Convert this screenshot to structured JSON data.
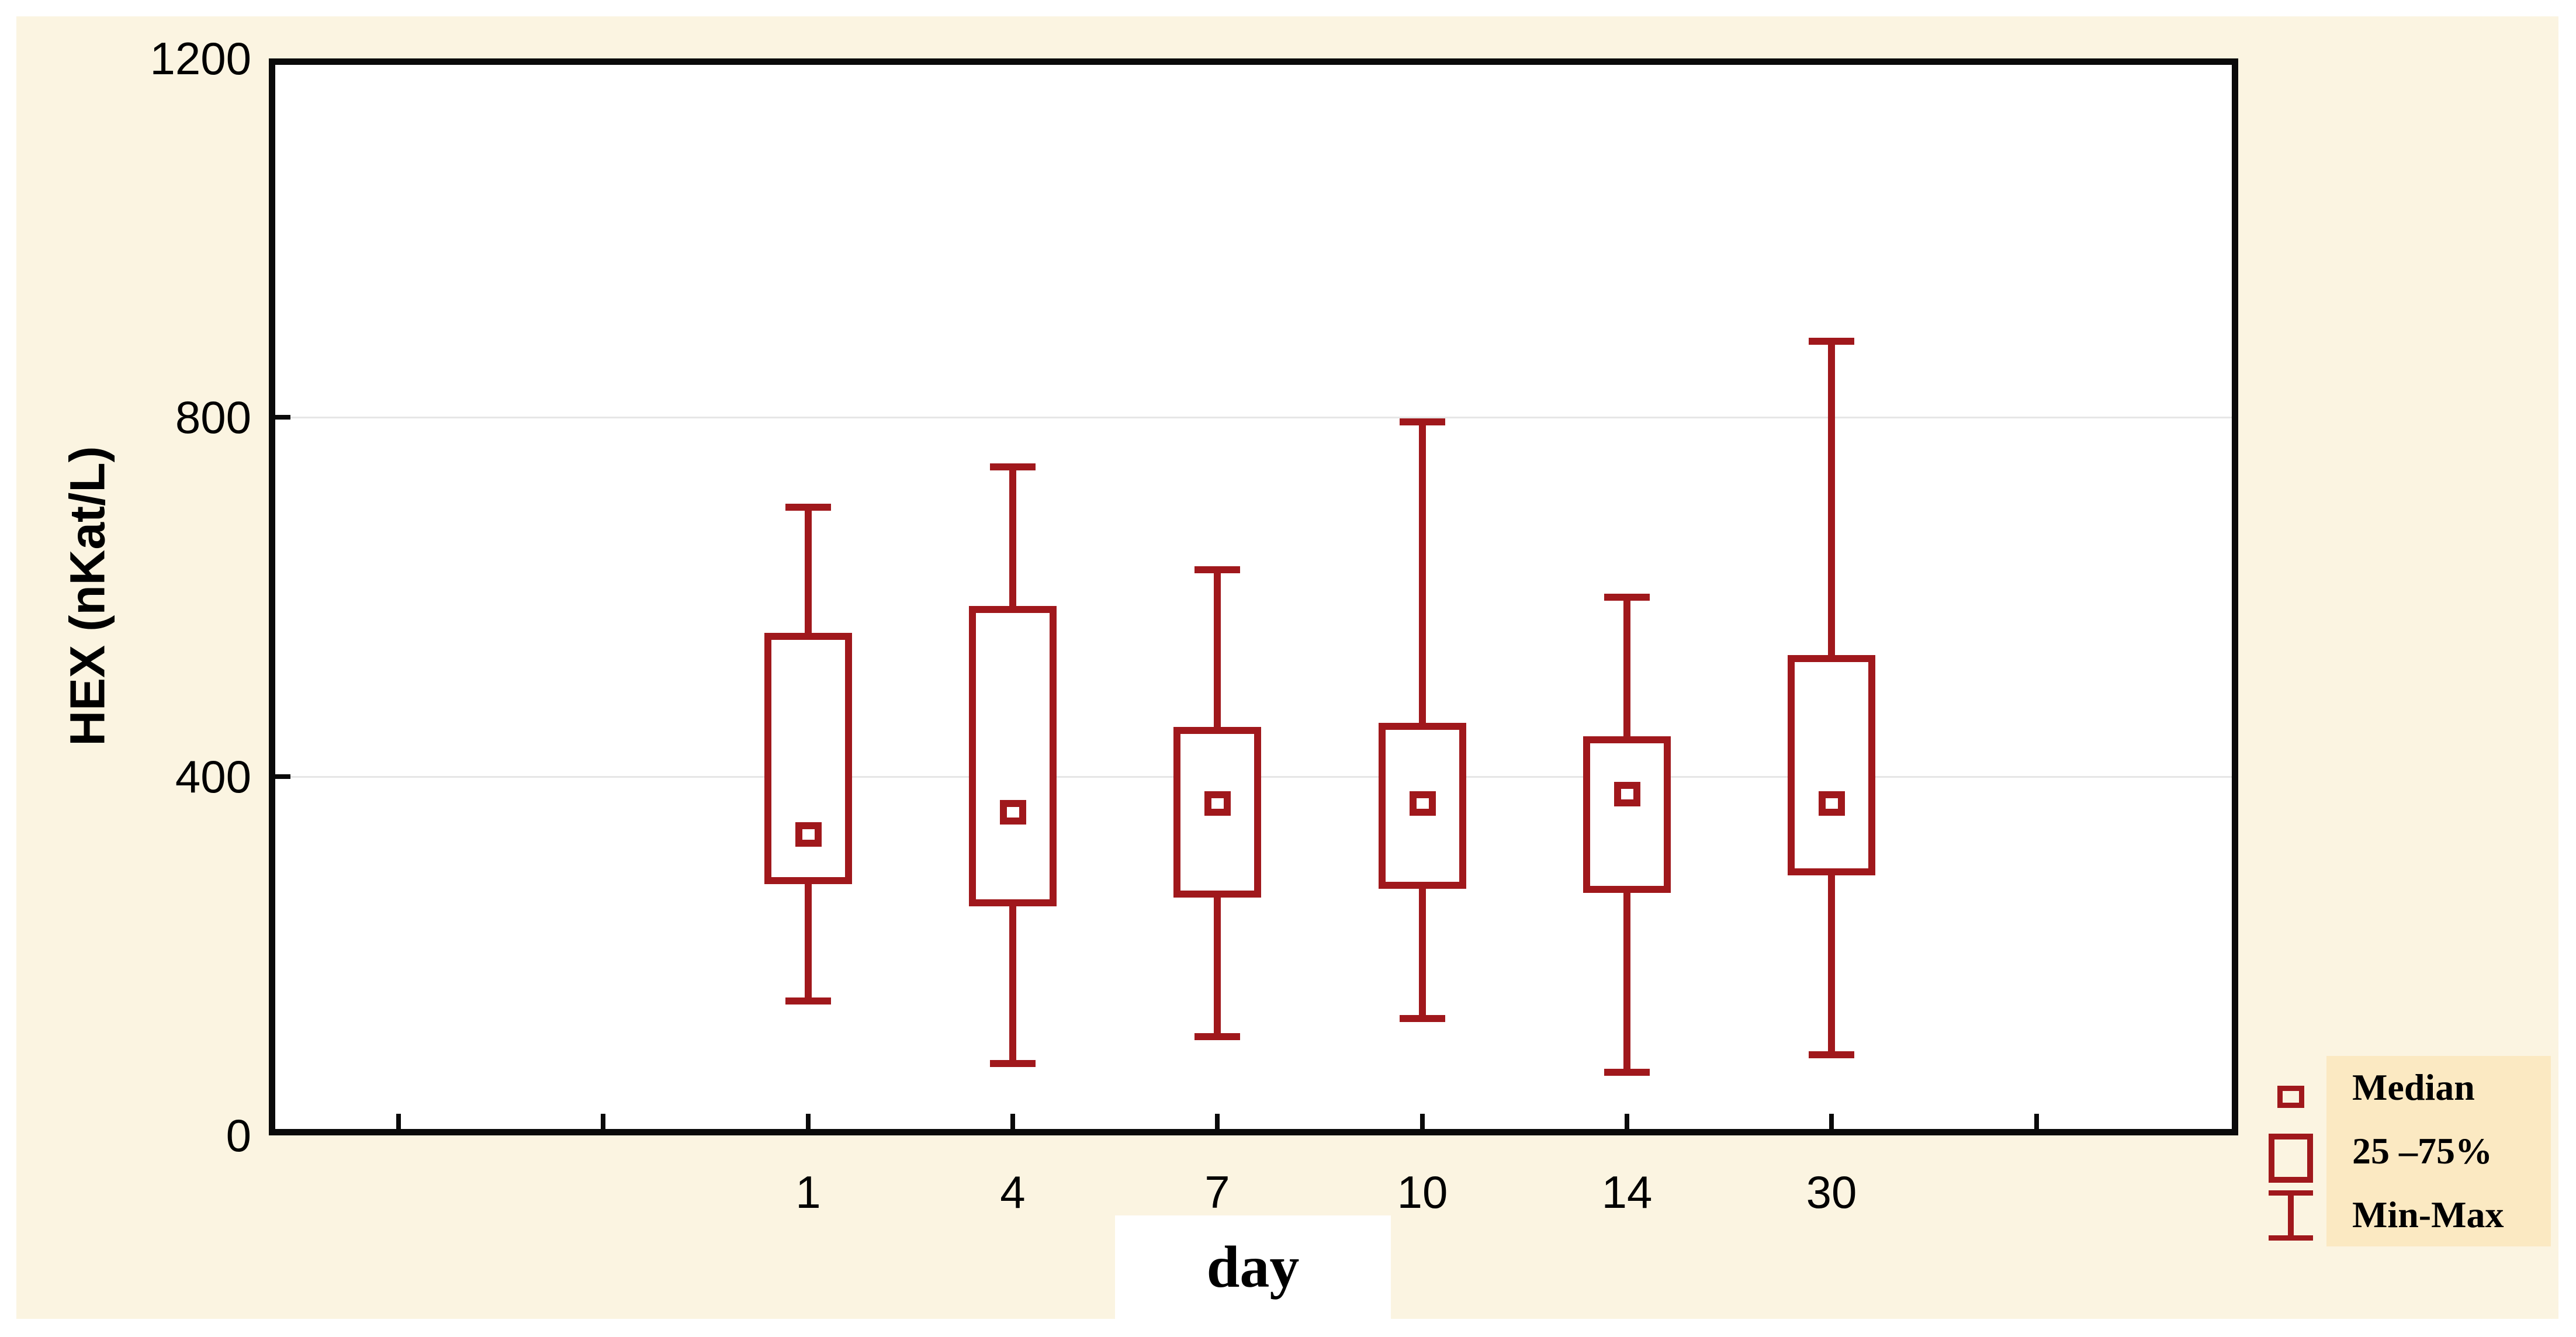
{
  "colors": {
    "panel_background": "#FBF4E1",
    "legend_panel_background": "#FBE9C2",
    "box_accent": "#A0181C",
    "gridline": "#E6E6E6",
    "frame": "#0A0A0A",
    "plot_background": "#FFFFFF"
  },
  "chart_data": {
    "type": "box",
    "title": "",
    "xlabel": "day",
    "ylabel": "HEX (nKat/L)",
    "ylim": [
      0,
      1200
    ],
    "y_ticks": [
      0,
      400,
      800,
      1200
    ],
    "grid_values": [
      400,
      800
    ],
    "grid": "horizontal gridlines at 400 and 800",
    "categories": [
      "1",
      "4",
      "7",
      "10",
      "14",
      "30"
    ],
    "series": [
      {
        "category": "1",
        "min": 150,
        "q1": 280,
        "median": 335,
        "q3": 560,
        "max": 700
      },
      {
        "category": "4",
        "min": 80,
        "q1": 255,
        "median": 360,
        "q3": 590,
        "max": 745
      },
      {
        "category": "7",
        "min": 110,
        "q1": 265,
        "median": 370,
        "q3": 455,
        "max": 630
      },
      {
        "category": "10",
        "min": 130,
        "q1": 275,
        "median": 370,
        "q3": 460,
        "max": 795
      },
      {
        "category": "14",
        "min": 70,
        "q1": 270,
        "median": 380,
        "q3": 445,
        "max": 600
      },
      {
        "category": "30",
        "min": 90,
        "q1": 290,
        "median": 370,
        "q3": 535,
        "max": 885
      }
    ],
    "legend_position": "bottom-right, outside plot area"
  },
  "legend": {
    "items": [
      {
        "icon": "median-marker-icon",
        "label": "Median"
      },
      {
        "icon": "iqr-box-icon",
        "label": "25 –75%"
      },
      {
        "icon": "min-max-whisker-icon",
        "label": "Min-Max"
      }
    ]
  }
}
